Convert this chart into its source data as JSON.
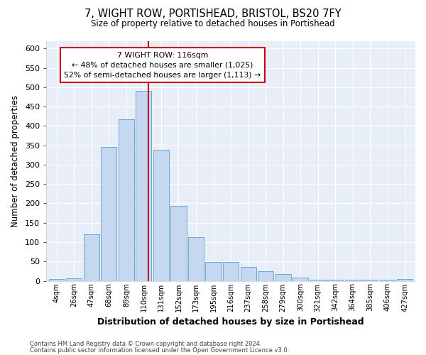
{
  "title": "7, WIGHT ROW, PORTISHEAD, BRISTOL, BS20 7FY",
  "subtitle": "Size of property relative to detached houses in Portishead",
  "xlabel": "Distribution of detached houses by size in Portishead",
  "ylabel": "Number of detached properties",
  "categories": [
    "4sqm",
    "26sqm",
    "47sqm",
    "68sqm",
    "89sqm",
    "110sqm",
    "131sqm",
    "152sqm",
    "173sqm",
    "195sqm",
    "216sqm",
    "237sqm",
    "258sqm",
    "279sqm",
    "300sqm",
    "321sqm",
    "342sqm",
    "364sqm",
    "385sqm",
    "406sqm",
    "427sqm"
  ],
  "values": [
    5,
    7,
    120,
    345,
    418,
    490,
    338,
    193,
    112,
    48,
    48,
    35,
    25,
    17,
    9,
    3,
    2,
    3,
    2,
    3,
    5
  ],
  "bar_color": "#c5d8f0",
  "bar_edge_color": "#6aaad4",
  "vline_color": "#cc0000",
  "annotation_title": "7 WIGHT ROW: 116sqm",
  "annotation_line1": "← 48% of detached houses are smaller (1,025)",
  "annotation_line2": "52% of semi-detached houses are larger (1,113) →",
  "annotation_box_facecolor": "#ffffff",
  "annotation_box_edgecolor": "#cc0000",
  "ylim": [
    0,
    620
  ],
  "yticks": [
    0,
    50,
    100,
    150,
    200,
    250,
    300,
    350,
    400,
    450,
    500,
    550,
    600
  ],
  "background_color": "#ffffff",
  "plot_bg_color": "#e8eef8",
  "grid_color": "#ffffff",
  "footer_line1": "Contains HM Land Registry data © Crown copyright and database right 2024.",
  "footer_line2": "Contains public sector information licensed under the Open Government Licence v3.0."
}
